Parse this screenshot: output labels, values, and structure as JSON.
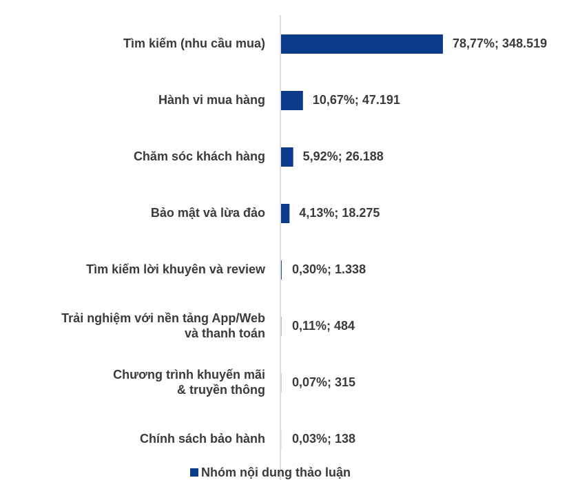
{
  "chart_data": {
    "type": "bar",
    "orientation": "horizontal",
    "categories": [
      "Tìm kiếm (nhu cầu mua)",
      "Hành vi mua hàng",
      "Chăm sóc khách hàng",
      "Bảo mật và lừa đảo",
      "Tìm kiếm lời khuyên và review",
      "Trải nghiệm với nền tảng App/Web\nvà thanh toán",
      "Chương trình khuyến mãi\n& truyền thông",
      "Chính sách bảo hành"
    ],
    "series": [
      {
        "name": "Nhóm nội dung thảo luận",
        "color": "#0d3a8a",
        "values": [
          78.77,
          10.67,
          5.92,
          4.13,
          0.3,
          0.11,
          0.07,
          0.03
        ],
        "value_labels": [
          "78,77%;  348.519",
          "10,67%;  47.191",
          "5,92%;  26.188",
          "4,13%;  18.275",
          "0,30%;  1.338",
          "0,11%;  484",
          "0,07%;  315",
          "0,03%;  138"
        ]
      }
    ],
    "legend": "bottom"
  }
}
